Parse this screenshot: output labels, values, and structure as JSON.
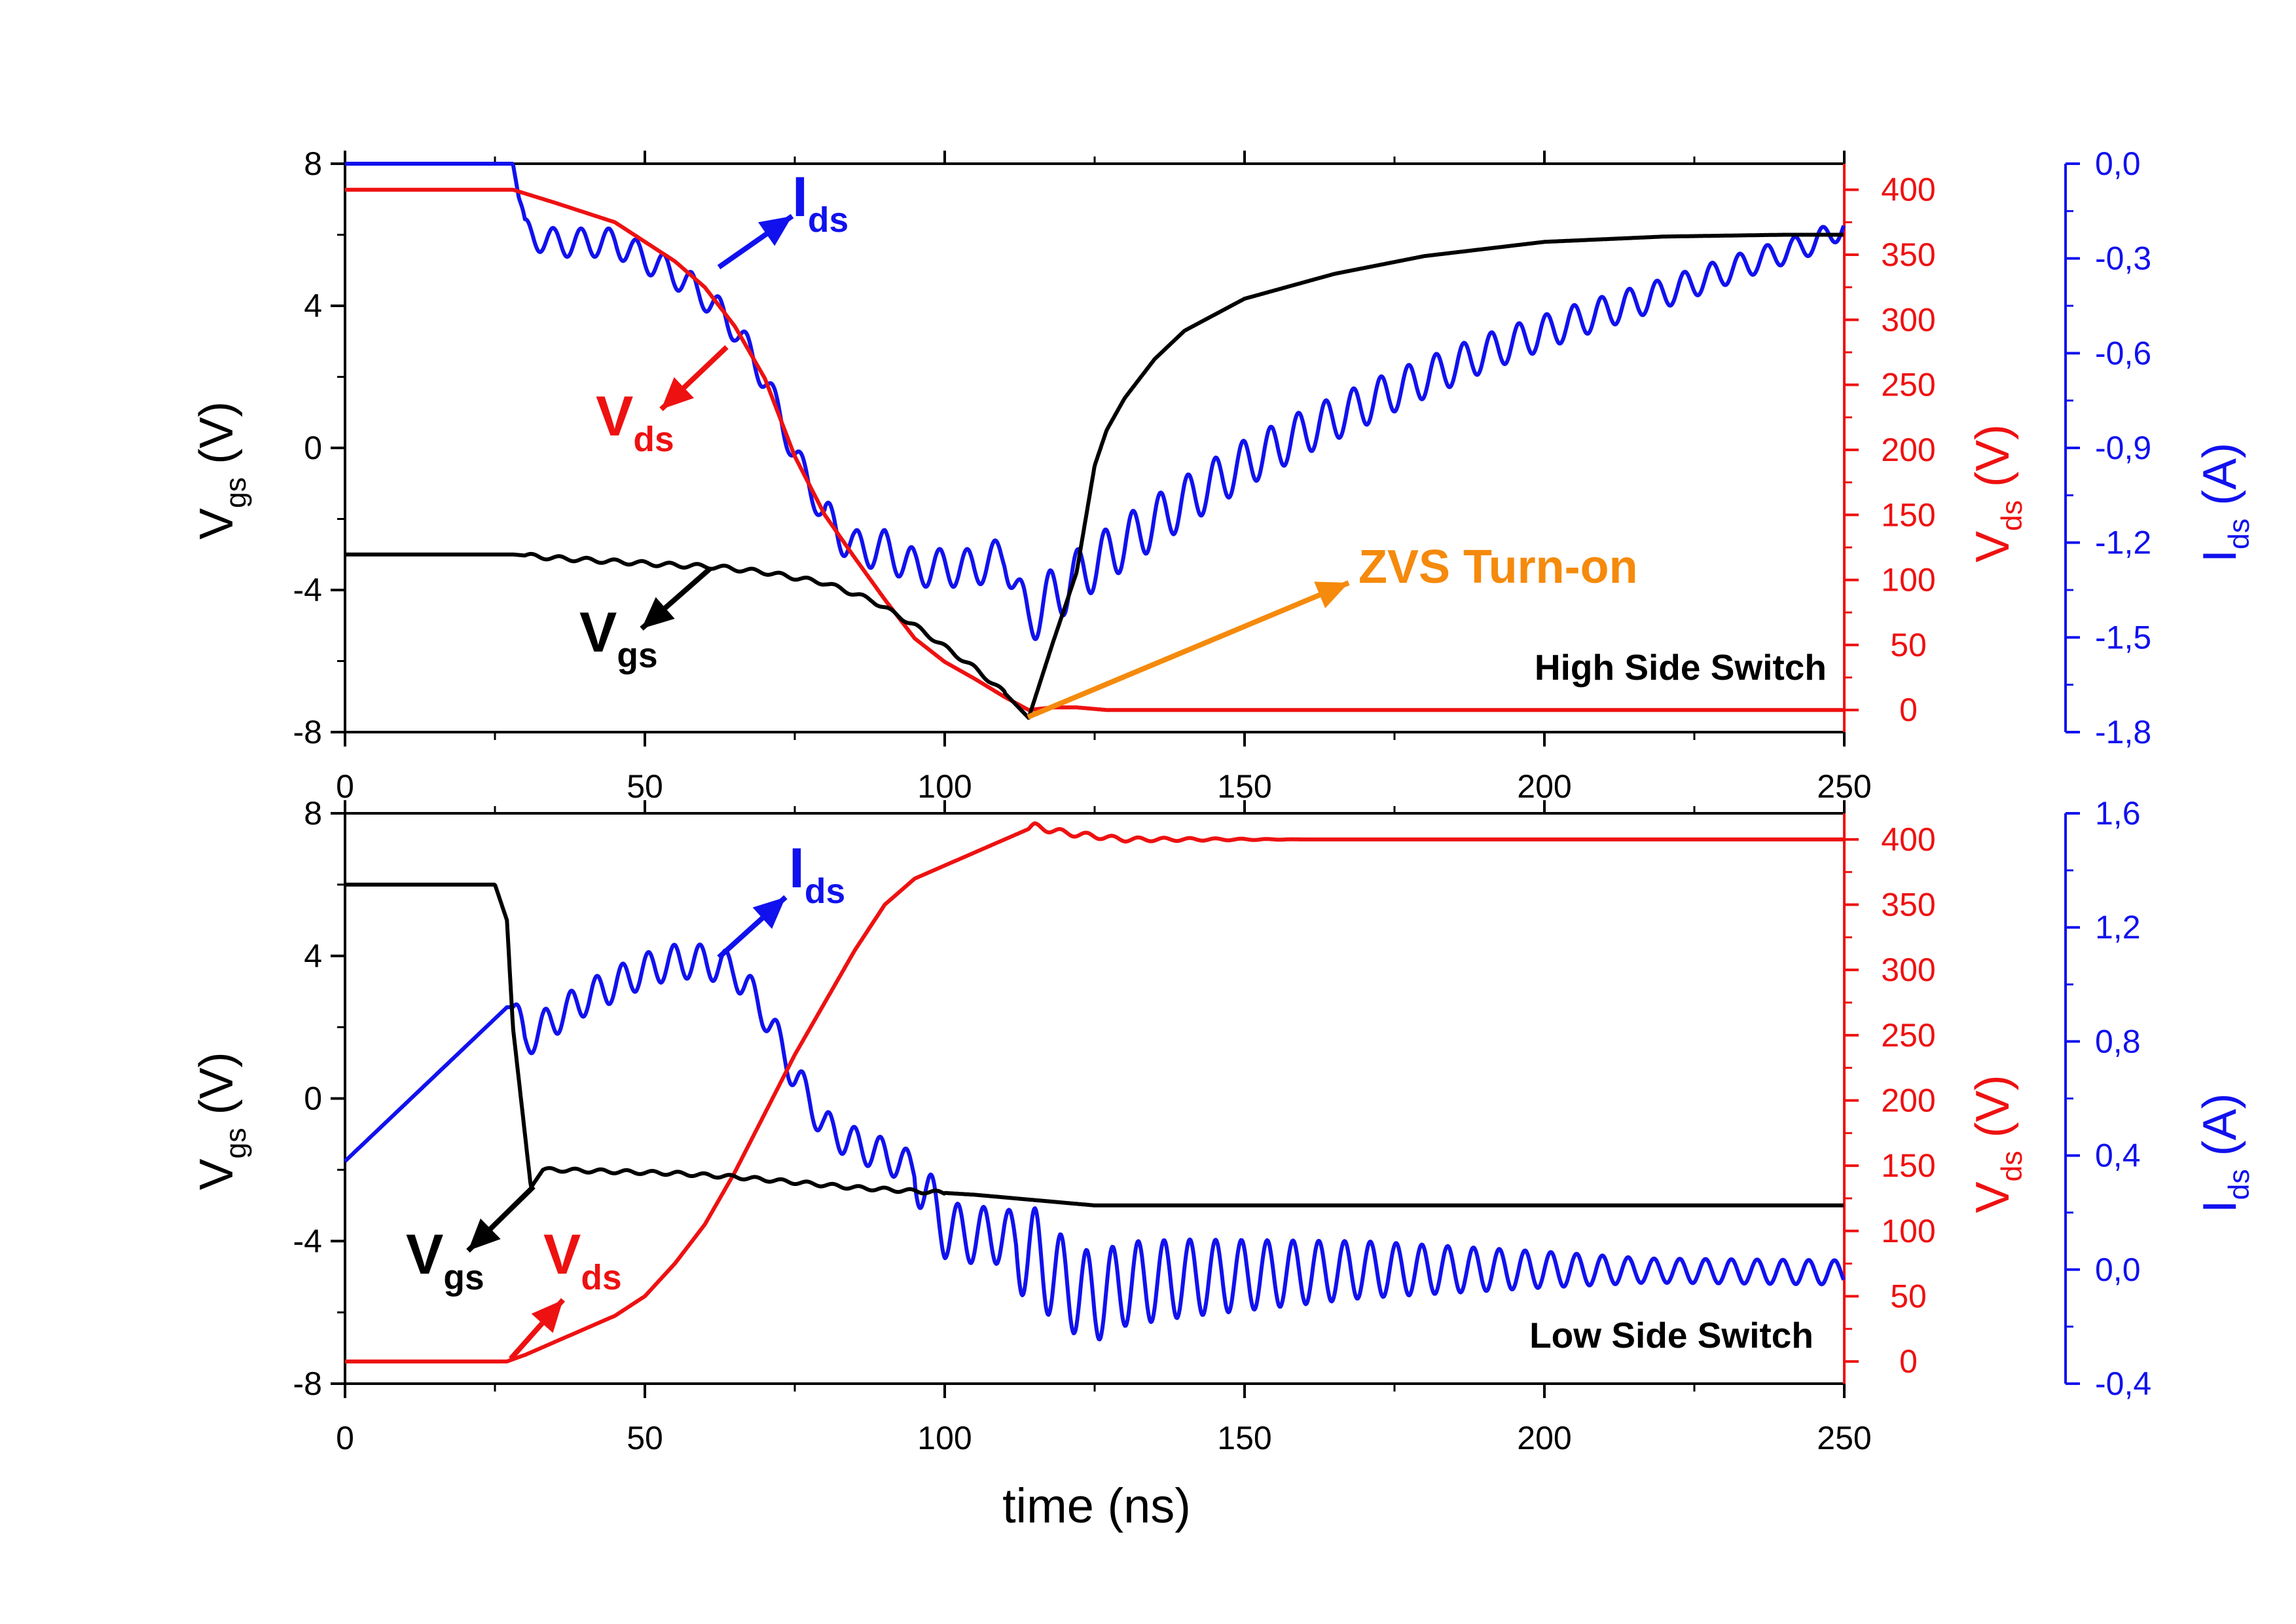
{
  "figure": {
    "xlabel": "time (ns)",
    "colors": {
      "vgs": "#000000",
      "vds": "#ee1111",
      "ids": "#1111ee",
      "zvs": "#f58a0c"
    }
  },
  "chart_data": [
    {
      "type": "line",
      "title": "High Side Switch",
      "xlabel": "time (ns)",
      "xlim": [
        0,
        250
      ],
      "x_ticks": [
        "0",
        "50",
        "100",
        "150",
        "200",
        "250"
      ],
      "axes": {
        "left": {
          "label": "V",
          "label_sub": "gs",
          "label_unit": "(V)",
          "ylim": [
            -8,
            8
          ],
          "ticks": [
            "-8",
            "-4",
            "0",
            "4",
            "8"
          ],
          "tick_values": [
            -8,
            -4,
            0,
            4,
            8
          ]
        },
        "right1": {
          "label": "V",
          "label_sub": "ds",
          "label_unit": "(V)",
          "ylim": [
            -17,
            420
          ],
          "ticks": [
            "0",
            "50",
            "100",
            "150",
            "200",
            "250",
            "300",
            "350",
            "400"
          ],
          "tick_values": [
            0,
            50,
            100,
            150,
            200,
            250,
            300,
            350,
            400
          ]
        },
        "right2": {
          "label": "I",
          "label_sub": "ds",
          "label_unit": "(A)",
          "ylim": [
            -1.8,
            0.0
          ],
          "ticks": [
            "-1,8",
            "-1,5",
            "-1,2",
            "-0,9",
            "-0,6",
            "-0,3",
            "0,0"
          ],
          "tick_values": [
            -1.8,
            -1.5,
            -1.2,
            -0.9,
            -0.6,
            -0.3,
            0.0
          ]
        }
      },
      "series": [
        {
          "name": "Vgs",
          "axis": "left",
          "color": "#000000",
          "x": [
            0,
            28,
            35,
            45,
            55,
            62,
            70,
            80,
            88,
            95,
            100,
            105,
            110,
            114,
            118,
            122,
            125,
            127,
            130,
            135,
            140,
            150,
            165,
            180,
            200,
            220,
            240,
            250
          ],
          "y": [
            -3.0,
            -3.0,
            -3.1,
            -3.2,
            -3.3,
            -3.35,
            -3.5,
            -3.8,
            -4.3,
            -5.0,
            -5.6,
            -6.2,
            -6.9,
            -7.6,
            -5.5,
            -3.5,
            -0.5,
            0.5,
            1.4,
            2.5,
            3.3,
            4.2,
            4.9,
            5.4,
            5.8,
            5.95,
            6.0,
            6.0
          ]
        },
        {
          "name": "Vds",
          "axis": "right1",
          "color": "#ee1111",
          "x": [
            0,
            28,
            35,
            45,
            55,
            60,
            65,
            70,
            75,
            80,
            85,
            90,
            95,
            100,
            105,
            110,
            114,
            118,
            122,
            127,
            140,
            250
          ],
          "y": [
            400,
            400,
            390,
            375,
            345,
            325,
            295,
            255,
            195,
            150,
            117,
            85,
            55,
            37,
            24,
            10,
            0,
            2,
            2,
            0,
            0,
            0
          ]
        },
        {
          "name": "Ids",
          "axis": "right2",
          "color": "#1111ee",
          "x": [
            0,
            28,
            30,
            35,
            45,
            55,
            60,
            65,
            70,
            75,
            80,
            85,
            90,
            95,
            100,
            105,
            110,
            114,
            116,
            120,
            124,
            130,
            140,
            150,
            160,
            175,
            190,
            205,
            220,
            235,
            245,
            250
          ],
          "y": [
            0.0,
            0.0,
            -0.22,
            -0.25,
            -0.25,
            -0.35,
            -0.42,
            -0.52,
            -0.68,
            -0.92,
            -1.12,
            -1.22,
            -1.22,
            -1.28,
            -1.28,
            -1.28,
            -1.24,
            -1.44,
            -1.4,
            -1.34,
            -1.28,
            -1.2,
            -1.07,
            -0.95,
            -0.85,
            -0.72,
            -0.6,
            -0.5,
            -0.41,
            -0.31,
            -0.25,
            -0.2
          ]
        }
      ],
      "annotations": [
        {
          "text": "I",
          "sub": "ds",
          "color": "#1111ee"
        },
        {
          "text": "V",
          "sub": "ds",
          "color": "#ee1111"
        },
        {
          "text": "V",
          "sub": "gs",
          "color": "#000000"
        },
        {
          "text": "ZVS Turn-on",
          "color": "#f58a0c"
        }
      ]
    },
    {
      "type": "line",
      "title": "Low Side Switch",
      "xlabel": "time (ns)",
      "xlim": [
        0,
        250
      ],
      "x_ticks": [
        "0",
        "50",
        "100",
        "150",
        "200",
        "250"
      ],
      "axes": {
        "left": {
          "label": "V",
          "label_sub": "gs",
          "label_unit": "(V)",
          "ylim": [
            -8,
            8
          ],
          "ticks": [
            "-8",
            "-4",
            "0",
            "4",
            "8"
          ],
          "tick_values": [
            -8,
            -4,
            0,
            4,
            8
          ]
        },
        "right1": {
          "label": "V",
          "label_sub": "ds",
          "label_unit": "(V)",
          "ylim": [
            -17,
            420
          ],
          "ticks": [
            "0",
            "50",
            "100",
            "150",
            "200",
            "250",
            "300",
            "350",
            "400"
          ],
          "tick_values": [
            0,
            50,
            100,
            150,
            200,
            250,
            300,
            350,
            400
          ]
        },
        "right2": {
          "label": "I",
          "label_sub": "ds",
          "label_unit": "(A)",
          "ylim": [
            -0.4,
            1.6
          ],
          "ticks": [
            "-0,4",
            "0,0",
            "0,4",
            "0,8",
            "1,2",
            "1,6"
          ],
          "tick_values": [
            -0.4,
            0.0,
            0.4,
            0.8,
            1.2,
            1.6
          ]
        }
      },
      "series": [
        {
          "name": "Vgs",
          "axis": "left",
          "color": "#000000",
          "x": [
            0,
            25,
            27,
            28,
            30,
            31,
            33,
            35,
            45,
            55,
            65,
            75,
            85,
            95,
            105,
            115,
            125,
            140,
            160,
            250
          ],
          "y": [
            6.0,
            6.0,
            5.0,
            2.0,
            -1.0,
            -2.5,
            -2.0,
            -2.0,
            -2.05,
            -2.1,
            -2.2,
            -2.35,
            -2.5,
            -2.6,
            -2.7,
            -2.85,
            -3.0,
            -3.0,
            -3.0,
            -3.0
          ]
        },
        {
          "name": "Vds",
          "axis": "right1",
          "color": "#ee1111",
          "x": [
            0,
            27,
            30,
            35,
            40,
            45,
            50,
            55,
            60,
            65,
            70,
            75,
            80,
            85,
            90,
            95,
            100,
            105,
            110,
            115,
            120,
            130,
            250
          ],
          "y": [
            0,
            0,
            5,
            15,
            25,
            35,
            50,
            75,
            105,
            145,
            190,
            235,
            275,
            315,
            350,
            370,
            380,
            390,
            400,
            410,
            405,
            400,
            400
          ]
        },
        {
          "name": "Ids",
          "axis": "right2",
          "color": "#1111ee",
          "x": [
            0,
            27,
            28,
            30,
            35,
            40,
            45,
            50,
            55,
            60,
            65,
            70,
            75,
            80,
            85,
            90,
            95,
            100,
            105,
            110,
            115,
            120,
            125,
            130,
            140,
            150,
            170,
            200,
            250
          ],
          "y": [
            0.38,
            0.92,
            0.92,
            0.8,
            0.88,
            0.95,
            1.0,
            1.05,
            1.08,
            1.08,
            1.05,
            0.9,
            0.68,
            0.5,
            0.44,
            0.4,
            0.35,
            0.14,
            0.12,
            0.12,
            0.05,
            -0.05,
            -0.1,
            -0.05,
            -0.03,
            -0.02,
            0.0,
            0.0,
            -0.01
          ]
        }
      ],
      "annotations": [
        {
          "text": "I",
          "sub": "ds",
          "color": "#1111ee"
        },
        {
          "text": "V",
          "sub": "ds",
          "color": "#ee1111"
        },
        {
          "text": "V",
          "sub": "gs",
          "color": "#000000"
        }
      ]
    }
  ]
}
